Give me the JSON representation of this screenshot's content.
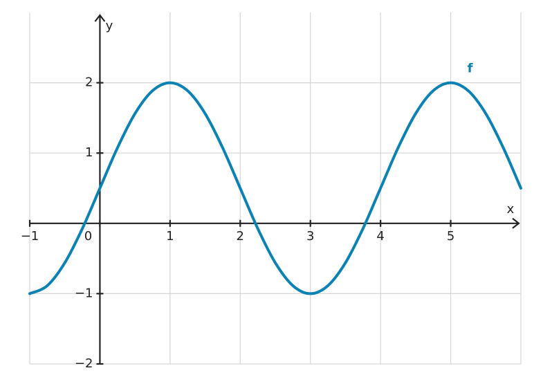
{
  "chart_data": {
    "type": "line",
    "x_label": "x",
    "y_label": "y",
    "x": [
      -1,
      -0.75,
      -0.5,
      -0.25,
      0,
      0.25,
      0.5,
      0.75,
      1,
      1.25,
      1.5,
      1.75,
      2,
      2.25,
      2.5,
      2.75,
      3,
      3.25,
      3.5,
      3.75,
      4,
      4.25,
      4.5,
      4.75,
      5,
      5.25,
      5.5,
      5.75,
      6
    ],
    "series": [
      {
        "name": "f",
        "color": "#0b82b4",
        "values": [
          -1,
          -0.886,
          -0.561,
          -0.074,
          0.5,
          1.074,
          1.561,
          1.886,
          2,
          1.886,
          1.561,
          1.074,
          0.5,
          -0.074,
          -0.561,
          -0.886,
          -1,
          -0.886,
          -0.561,
          -0.074,
          0.5,
          1.074,
          1.561,
          1.886,
          2,
          1.886,
          1.561,
          1.074,
          0.5
        ]
      }
    ],
    "xlim": [
      -1,
      6
    ],
    "ylim": [
      -2,
      3
    ],
    "xticks": [
      {
        "value": -1,
        "label": "−1"
      },
      0,
      1,
      2,
      3,
      4,
      5
    ],
    "yticks": [
      {
        "value": -2,
        "label": "−2"
      },
      {
        "value": -1,
        "label": "−1"
      },
      1,
      2
    ],
    "grid": true
  }
}
